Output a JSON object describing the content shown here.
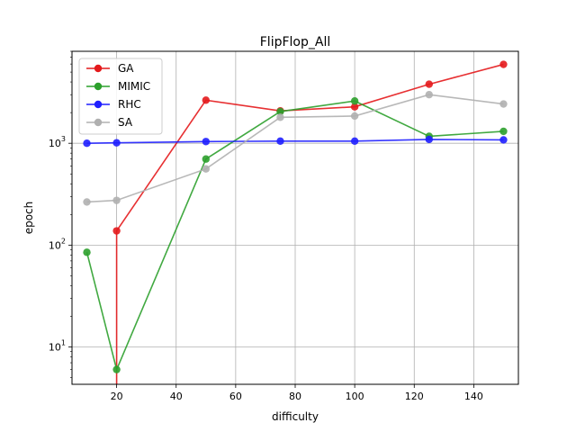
{
  "chart_data": {
    "type": "line",
    "title": "FlipFlop_All",
    "xlabel": "difficulty",
    "ylabel": "epoch",
    "xlim": [
      5,
      155
    ],
    "ylim": [
      4.3,
      8000
    ],
    "yscale": "log",
    "grid": true,
    "legend_position": "top-left",
    "x_ticks": [
      20,
      40,
      60,
      80,
      100,
      120,
      140
    ],
    "y_ticks": [
      {
        "value": 10,
        "label": "10"
      },
      {
        "value": 100,
        "label": "10"
      },
      {
        "value": 1000,
        "label": "10"
      }
    ],
    "y_tick_exponents": [
      "1",
      "2",
      "3"
    ],
    "series": [
      {
        "name": "GA",
        "color": "#e41a1c",
        "x": [
          20,
          20,
          50,
          75,
          100,
          125,
          150
        ],
        "y": [
          1,
          138,
          2650,
          2080,
          2280,
          3800,
          5950
        ]
      },
      {
        "name": "MIMIC",
        "color": "#2ca02c",
        "x": [
          10,
          20,
          50,
          75,
          100,
          125,
          150
        ],
        "y": [
          85,
          6,
          700,
          2050,
          2600,
          1170,
          1310
        ]
      },
      {
        "name": "RHC",
        "color": "#1f1fff",
        "x": [
          10,
          20,
          50,
          75,
          100,
          125,
          150
        ],
        "y": [
          1000,
          1010,
          1040,
          1050,
          1050,
          1090,
          1080
        ]
      },
      {
        "name": "SA",
        "color": "#b0b0b0",
        "x": [
          10,
          20,
          50,
          75,
          100,
          125,
          150
        ],
        "y": [
          265,
          275,
          560,
          1800,
          1850,
          3000,
          2430
        ]
      }
    ]
  }
}
